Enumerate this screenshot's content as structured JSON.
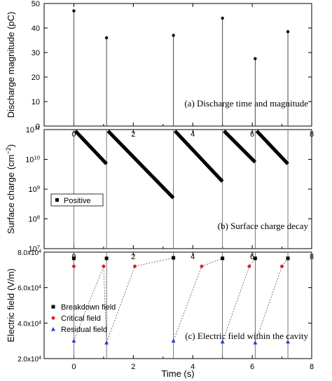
{
  "chart_data": [
    {
      "type": "stem",
      "ylabel": "Discharge magnitude (pC)",
      "annotation": "(a) Discharge time and magnitude",
      "xlim": [
        -1,
        8
      ],
      "ylim": [
        0,
        50
      ],
      "xticks": [
        "0",
        "2",
        "4",
        "6",
        "8"
      ],
      "yticks": [
        "0",
        "10",
        "20",
        "30",
        "40",
        "50"
      ],
      "x": [
        0.0,
        1.1,
        3.35,
        5.0,
        6.1,
        7.2
      ],
      "values": [
        47,
        36,
        37,
        44,
        27.5,
        38.5
      ]
    },
    {
      "type": "line",
      "ylabel": "Surface charge (cm⁻²)",
      "annotation": "(b) Surface charge decay",
      "xlim": [
        -1,
        8
      ],
      "yscale": "log",
      "ylim": [
        10000000.0,
        100000000000.0
      ],
      "xticks": [
        "0",
        "2",
        "4",
        "6",
        "8"
      ],
      "yticks": [
        {
          "base": "10",
          "exp": "7"
        },
        {
          "base": "10",
          "exp": "8"
        },
        {
          "base": "10",
          "exp": "9"
        },
        {
          "base": "10",
          "exp": "10"
        },
        {
          "base": "10",
          "exp": "11"
        }
      ],
      "legend": "Positive",
      "legend_position": "left",
      "discharge_times": [
        0.0,
        1.1,
        3.35,
        5.0,
        6.1,
        7.2
      ],
      "segments": [
        {
          "x": [
            0.05,
            1.1
          ],
          "y": [
            90000000000.0,
            7000000000.0
          ]
        },
        {
          "x": [
            1.15,
            3.35
          ],
          "y": [
            90000000000.0,
            500000000.0
          ]
        },
        {
          "x": [
            3.4,
            5.0
          ],
          "y": [
            90000000000.0,
            1800000000.0
          ]
        },
        {
          "x": [
            5.05,
            6.1
          ],
          "y": [
            90000000000.0,
            8000000000.0
          ]
        },
        {
          "x": [
            6.15,
            7.2
          ],
          "y": [
            90000000000.0,
            7000000000.0
          ]
        }
      ]
    },
    {
      "type": "scatter",
      "xlabel": "Time (s)",
      "ylabel": "Electric field (V/m)",
      "annotation": "(c) Electric field within the cavity",
      "xlim": [
        -1,
        8
      ],
      "ylim": [
        20000,
        80000
      ],
      "xticks": [
        "0",
        "2",
        "4",
        "6",
        "8"
      ],
      "yticks": [
        {
          "value": 20000,
          "mant": "2.0x10",
          "exp": "4"
        },
        {
          "value": 40000,
          "mant": "4.0x10",
          "exp": "4"
        },
        {
          "value": 60000,
          "mant": "6.0x10",
          "exp": "4"
        },
        {
          "value": 80000,
          "mant": "8.0x10",
          "exp": "4"
        }
      ],
      "discharge_times": [
        0.0,
        1.1,
        3.35,
        5.0,
        6.1,
        7.2
      ],
      "series": [
        {
          "name": "Breakdown field",
          "color": "#000000",
          "marker": "square",
          "x": [
            0.0,
            1.1,
            3.35,
            5.0,
            6.1,
            7.2
          ],
          "y": [
            76500,
            76500,
            76800,
            76500,
            76500,
            76500
          ]
        },
        {
          "name": "Critical field",
          "color": "#e02020",
          "marker": "circle",
          "x": [
            0.0,
            1.0,
            2.05,
            4.3,
            5.9,
            7.0
          ],
          "y": [
            72000,
            72000,
            72000,
            72000,
            72000,
            72000
          ]
        },
        {
          "name": "Residual field",
          "color": "#1f3fcf",
          "marker": "triangle",
          "x": [
            0.0,
            1.1,
            3.35,
            5.0,
            6.1,
            7.2
          ],
          "y": [
            30000,
            29000,
            30000,
            29500,
            29000,
            29500
          ]
        }
      ],
      "dotted_path": {
        "x": [
          0.0,
          1.0,
          1.1,
          2.05,
          3.35,
          3.35,
          4.3,
          5.0,
          5.0,
          5.9,
          6.1,
          6.1,
          7.0,
          7.2
        ],
        "y": [
          30000,
          72000,
          29000,
          72000,
          76800,
          30000,
          72000,
          76500,
          29500,
          72000,
          76500,
          29000,
          72000,
          76500
        ]
      }
    }
  ]
}
